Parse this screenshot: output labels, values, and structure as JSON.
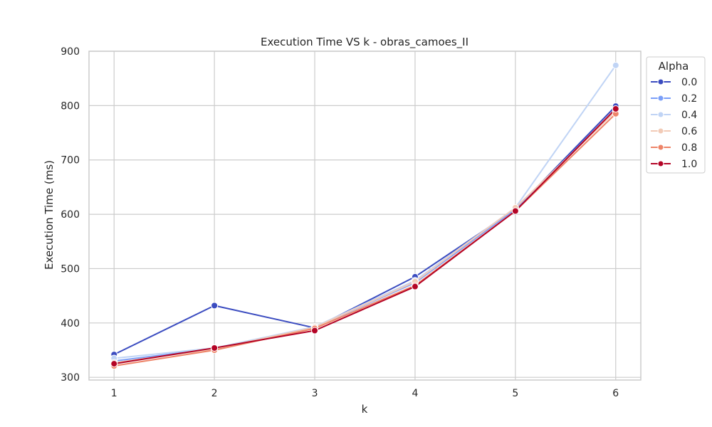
{
  "chart_data": {
    "type": "line",
    "title": "Execution Time VS k - obras_camoes_II",
    "xlabel": "k",
    "ylabel": "Execution Time (ms)",
    "x": [
      1,
      2,
      3,
      4,
      5,
      6
    ],
    "xlim": [
      0.75,
      6.25
    ],
    "ylim": [
      295,
      900
    ],
    "yticks": [
      300,
      400,
      500,
      600,
      700,
      800,
      900
    ],
    "grid": true,
    "legend": {
      "title": "Alpha",
      "placement": "outside-top-right"
    },
    "series": [
      {
        "name": "0.0",
        "color": "#3b4cc0",
        "values": [
          342,
          432,
          391,
          485,
          609,
          799
        ]
      },
      {
        "name": "0.2",
        "color": "#7b9ff9",
        "values": [
          330,
          353,
          392,
          474,
          609,
          793
        ]
      },
      {
        "name": "0.4",
        "color": "#c0d4f5",
        "values": [
          335,
          354,
          393,
          478,
          612,
          874
        ]
      },
      {
        "name": "0.6",
        "color": "#f2cbb7",
        "values": [
          327,
          352,
          392,
          476,
          612,
          790
        ]
      },
      {
        "name": "0.8",
        "color": "#ee8468",
        "values": [
          321,
          350,
          390,
          469,
          606,
          785
        ]
      },
      {
        "name": "1.0",
        "color": "#b40426",
        "values": [
          325,
          354,
          386,
          467,
          606,
          794
        ]
      }
    ]
  }
}
